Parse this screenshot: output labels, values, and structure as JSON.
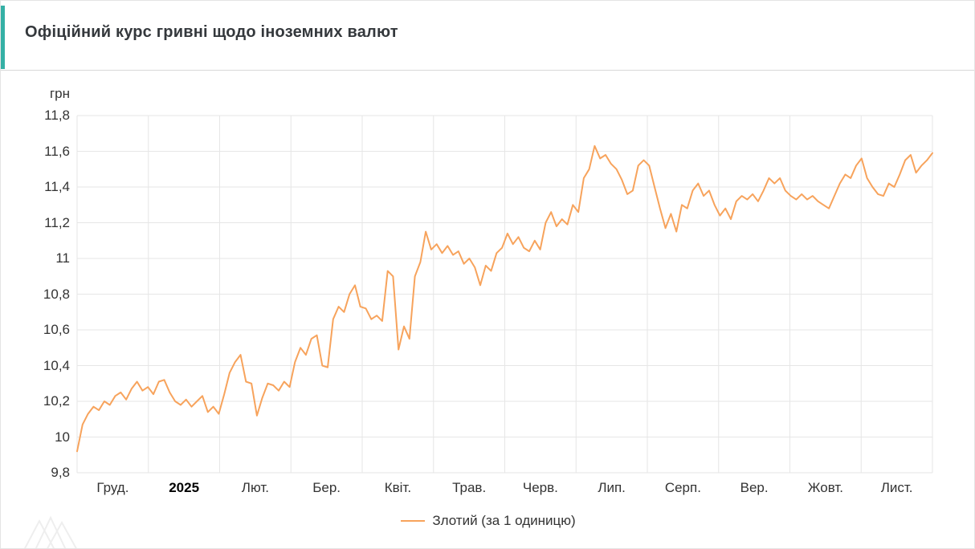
{
  "chart_data": {
    "type": "line",
    "title": "Офіційний курс гривні щодо іноземних валют",
    "ylabel": "грн",
    "xlabel": "",
    "ylim": [
      9.8,
      11.8
    ],
    "ytick_step": 0.2,
    "grid": true,
    "legend_position": "bottom",
    "categories": [
      "Груд.",
      "2025",
      "Лют.",
      "Бер.",
      "Квіт.",
      "Трав.",
      "Черв.",
      "Лип.",
      "Серп.",
      "Вер.",
      "Жовт.",
      "Лист."
    ],
    "emphasized_category": "2025",
    "series": [
      {
        "name": "Злотий (за 1 одиницю)",
        "color": "#f7a35c",
        "values": [
          9.92,
          10.07,
          10.13,
          10.17,
          10.15,
          10.2,
          10.18,
          10.23,
          10.25,
          10.21,
          10.27,
          10.31,
          10.26,
          10.28,
          10.24,
          10.31,
          10.32,
          10.25,
          10.2,
          10.18,
          10.21,
          10.17,
          10.2,
          10.23,
          10.14,
          10.17,
          10.13,
          10.24,
          10.36,
          10.42,
          10.46,
          10.31,
          10.3,
          10.12,
          10.22,
          10.3,
          10.29,
          10.26,
          10.31,
          10.28,
          10.42,
          10.5,
          10.46,
          10.55,
          10.57,
          10.4,
          10.39,
          10.66,
          10.73,
          10.7,
          10.8,
          10.85,
          10.73,
          10.72,
          10.66,
          10.68,
          10.65,
          10.93,
          10.9,
          10.49,
          10.62,
          10.55,
          10.9,
          10.98,
          11.15,
          11.05,
          11.08,
          11.03,
          11.07,
          11.02,
          11.04,
          10.97,
          11.0,
          10.95,
          10.85,
          10.96,
          10.93,
          11.03,
          11.06,
          11.14,
          11.08,
          11.12,
          11.06,
          11.04,
          11.1,
          11.05,
          11.2,
          11.26,
          11.18,
          11.22,
          11.19,
          11.3,
          11.26,
          11.45,
          11.5,
          11.63,
          11.56,
          11.58,
          11.53,
          11.5,
          11.44,
          11.36,
          11.38,
          11.52,
          11.55,
          11.52,
          11.4,
          11.28,
          11.17,
          11.25,
          11.15,
          11.3,
          11.28,
          11.38,
          11.42,
          11.35,
          11.38,
          11.3,
          11.24,
          11.28,
          11.22,
          11.32,
          11.35,
          11.33,
          11.36,
          11.32,
          11.38,
          11.45,
          11.42,
          11.45,
          11.38,
          11.35,
          11.33,
          11.36,
          11.33,
          11.35,
          11.32,
          11.3,
          11.28,
          11.35,
          11.42,
          11.47,
          11.45,
          11.52,
          11.56,
          11.45,
          11.4,
          11.36,
          11.35,
          11.42,
          11.4,
          11.47,
          11.55,
          11.58,
          11.48,
          11.52,
          11.55,
          11.59
        ]
      }
    ]
  },
  "colors": {
    "accent": "#35b0a5",
    "gridline": "#e6e6e6",
    "axis_text": "#333333",
    "line": "#f7a35c"
  }
}
